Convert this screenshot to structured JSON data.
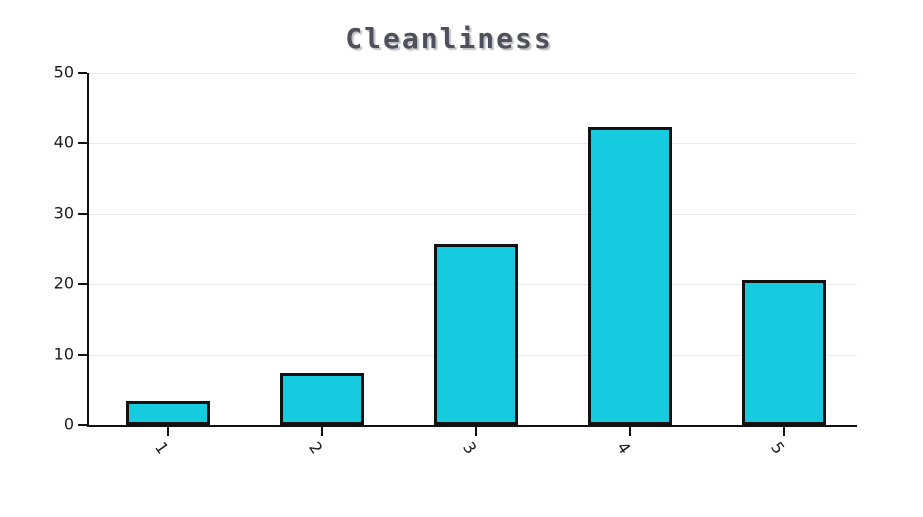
{
  "chart_data": {
    "type": "bar",
    "title": "Cleanliness",
    "categories": [
      "1",
      "2",
      "3",
      "4",
      "5"
    ],
    "values": [
      3.4,
      7.4,
      25.7,
      42.4,
      20.6
    ],
    "xlabel": "",
    "ylabel": "",
    "ylim": [
      0,
      50
    ],
    "yticks": [
      0,
      10,
      20,
      30,
      40,
      50
    ],
    "grid": "horizontal-only",
    "legend_position": "none",
    "x_label_rotation_deg": 55,
    "colors": {
      "bar_fill": "#16cae0",
      "bar_border": "#111111",
      "axis": "#111111",
      "gridline": "#e9e9e9",
      "tick_label": "#1b1b1b",
      "title": "#50505a",
      "title_shadow": "#c2c2c8",
      "background": "#ffffff"
    }
  }
}
